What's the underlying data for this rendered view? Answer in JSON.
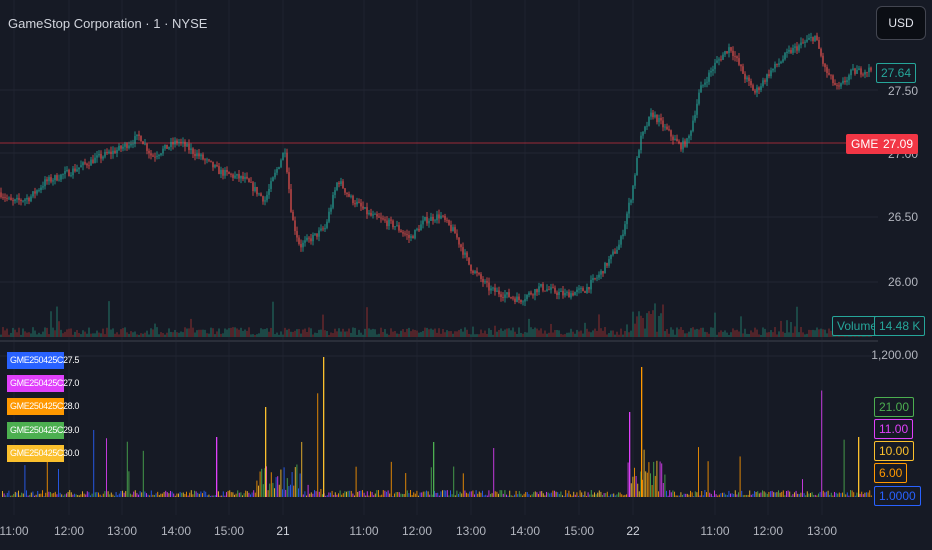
{
  "header": {
    "title": "GameStop Corporation · 1 · NYSE",
    "currency": "USD"
  },
  "price_axis": {
    "ticks": [
      "27.50",
      "27.00",
      "26.50",
      "26.00"
    ]
  },
  "last_price": {
    "symbol": "GME",
    "value": "27.09",
    "color": "#f23645"
  },
  "last_close_label": {
    "value": "27.64",
    "color": "#26a69a"
  },
  "volume": {
    "label": "Volume",
    "value": "14.48 K"
  },
  "lower_pane": {
    "top_tick": "1,200.00",
    "legend": [
      {
        "label": "GME250425C27.5",
        "color": "#2962ff"
      },
      {
        "label": "GME250425C27.0",
        "color": "#e040fb"
      },
      {
        "label": "GME250425C28.0",
        "color": "#ff9800"
      },
      {
        "label": "GME250425C29.0",
        "color": "#4caf50"
      },
      {
        "label": "GME250425C30.0",
        "color": "#fbc02d"
      }
    ],
    "value_badges": [
      {
        "value": "21.00",
        "color": "#4caf50"
      },
      {
        "value": "11.00",
        "color": "#e040fb"
      },
      {
        "value": "10.00",
        "color": "#fbc02d"
      },
      {
        "value": "6.00",
        "color": "#ff9800"
      },
      {
        "value": "1.0000",
        "color": "#2962ff"
      }
    ]
  },
  "time_axis": {
    "ticks": [
      "11:00",
      "12:00",
      "13:00",
      "14:00",
      "15:00",
      "21",
      "11:00",
      "12:00",
      "13:00",
      "14:00",
      "15:00",
      "22",
      "11:00",
      "12:00",
      "13:00"
    ]
  },
  "chart_data": {
    "type": "candlestick",
    "price_range": [
      25.8,
      28.4
    ],
    "anchors": [
      [
        0,
        26.7
      ],
      [
        12,
        26.62
      ],
      [
        30,
        26.66
      ],
      [
        45,
        26.78
      ],
      [
        70,
        26.86
      ],
      [
        95,
        26.96
      ],
      [
        120,
        27.04
      ],
      [
        140,
        27.14
      ],
      [
        152,
        26.98
      ],
      [
        160,
        27.02
      ],
      [
        178,
        27.1
      ],
      [
        200,
        26.98
      ],
      [
        220,
        26.86
      ],
      [
        245,
        26.8
      ],
      [
        265,
        26.64
      ],
      [
        285,
        27.04
      ],
      [
        292,
        26.5
      ],
      [
        300,
        26.28
      ],
      [
        315,
        26.36
      ],
      [
        325,
        26.42
      ],
      [
        338,
        26.8
      ],
      [
        350,
        26.66
      ],
      [
        370,
        26.52
      ],
      [
        395,
        26.44
      ],
      [
        410,
        26.34
      ],
      [
        425,
        26.48
      ],
      [
        440,
        26.52
      ],
      [
        455,
        26.38
      ],
      [
        470,
        26.12
      ],
      [
        490,
        25.94
      ],
      [
        505,
        25.9
      ],
      [
        520,
        25.86
      ],
      [
        540,
        25.96
      ],
      [
        565,
        25.9
      ],
      [
        585,
        25.94
      ],
      [
        600,
        26.06
      ],
      [
        620,
        26.3
      ],
      [
        632,
        26.7
      ],
      [
        640,
        27.1
      ],
      [
        652,
        27.32
      ],
      [
        665,
        27.2
      ],
      [
        680,
        27.06
      ],
      [
        688,
        27.1
      ],
      [
        700,
        27.5
      ],
      [
        715,
        27.7
      ],
      [
        730,
        27.84
      ],
      [
        745,
        27.6
      ],
      [
        755,
        27.48
      ],
      [
        770,
        27.64
      ],
      [
        790,
        27.8
      ],
      [
        815,
        27.92
      ],
      [
        825,
        27.66
      ],
      [
        838,
        27.5
      ],
      [
        852,
        27.64
      ],
      [
        872,
        27.66
      ]
    ],
    "volume_note": "intraday volume histogram, peak ~14.48 K"
  }
}
